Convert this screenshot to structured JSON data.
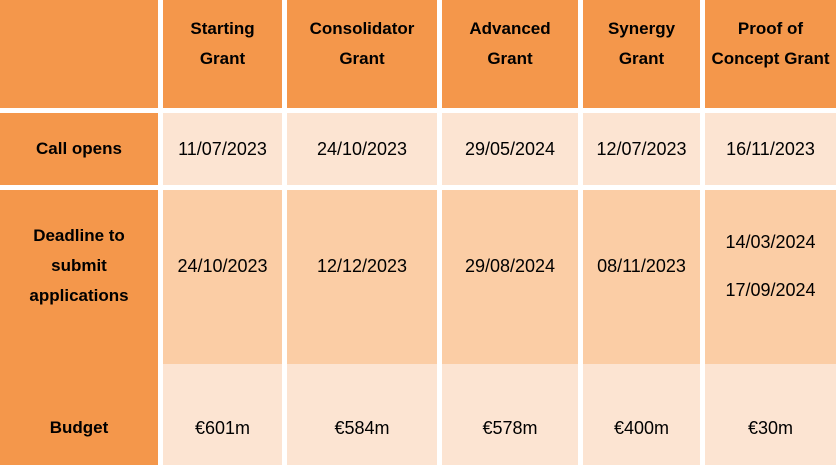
{
  "table": {
    "corner": "",
    "columns": [
      "Starting Grant",
      "Consolidator Grant",
      "Advanced Grant",
      "Synergy Grant",
      "Proof of Concept Grant"
    ],
    "rows": [
      {
        "label": "Call opens",
        "cells": [
          "11/07/2023",
          "24/10/2023",
          "29/05/2024",
          "12/07/2023",
          "16/11/2023"
        ]
      },
      {
        "label": "Deadline to submit applications",
        "cells": [
          "24/10/2023",
          "12/12/2023",
          "29/08/2024",
          "08/11/2023",
          [
            "14/03/2024",
            "17/09/2024"
          ]
        ]
      },
      {
        "label": "Budget",
        "cells": [
          "€601m",
          "€584m",
          "€578m",
          "€400m",
          "€30m"
        ]
      }
    ]
  },
  "colors": {
    "header_fill": "#F4974B",
    "band_light": "#FCE4D2",
    "band_dark": "#FBCDA5",
    "gridline": "#FFFFFF",
    "text": "#000000"
  }
}
